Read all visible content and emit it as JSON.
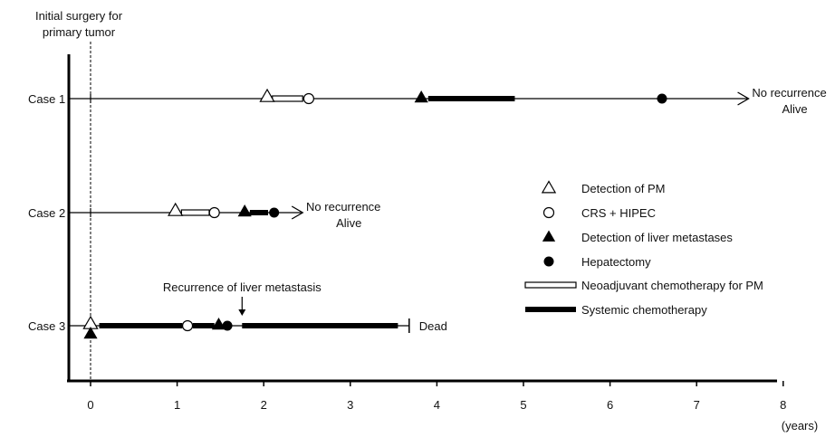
{
  "chart_data": {
    "type": "timeline",
    "header_lines": [
      "Initial surgery for",
      "primary tumor"
    ],
    "x_axis": {
      "unit_label": "(years)",
      "range": [
        0,
        8
      ],
      "ticks": [
        "0",
        "1",
        "2",
        "3",
        "4",
        "5",
        "6",
        "7",
        "8"
      ]
    },
    "cases": [
      {
        "label": "Case 1",
        "line_end": 7.6,
        "end_type": "arrow",
        "outcome_lines": [
          "No recurrence",
          "Alive"
        ],
        "neoadjuvant": [
          [
            2.1,
            2.45
          ]
        ],
        "systemic": [
          [
            3.9,
            4.9
          ]
        ],
        "pm_detection": [
          2.04
        ],
        "crs_hipec": [
          2.52
        ],
        "liver_detection": [
          3.82
        ],
        "hepatectomy": [
          6.6
        ]
      },
      {
        "label": "Case 2",
        "line_end": 2.45,
        "end_type": "arrow",
        "outcome_lines": [
          "No recurrence",
          "Alive"
        ],
        "neoadjuvant": [
          [
            1.05,
            1.37
          ]
        ],
        "systemic": [
          [
            1.84,
            2.05
          ]
        ],
        "pm_detection": [
          0.98
        ],
        "crs_hipec": [
          1.43
        ],
        "liver_detection": [
          1.78
        ],
        "hepatectomy": [
          2.12
        ]
      },
      {
        "label": "Case 3",
        "line_end": 3.68,
        "end_type": "bar",
        "outcome_lines": [
          "Dead"
        ],
        "neoadjuvant": [],
        "systemic": [
          [
            0.1,
            1.06
          ],
          [
            1.18,
            1.43
          ],
          [
            1.75,
            3.55
          ]
        ],
        "pm_detection": [
          0.0
        ],
        "crs_hipec": [
          1.12
        ],
        "liver_detection": [
          0.0,
          1.48
        ],
        "hepatectomy": [
          1.58
        ],
        "annotation": {
          "text": "Recurrence of liver metastasis",
          "x": 1.75
        }
      }
    ],
    "legend": [
      {
        "symbol": "open-triangle",
        "label": "Detection of PM"
      },
      {
        "symbol": "open-circle",
        "label": "CRS + HIPEC"
      },
      {
        "symbol": "filled-triangle",
        "label": "Detection of  liver metastases"
      },
      {
        "symbol": "filled-circle",
        "label": "Hepatectomy"
      },
      {
        "symbol": "open-bar",
        "label": "Neoadjuvant chemotherapy for PM"
      },
      {
        "symbol": "filled-bar",
        "label": "Systemic chemotherapy"
      }
    ]
  }
}
